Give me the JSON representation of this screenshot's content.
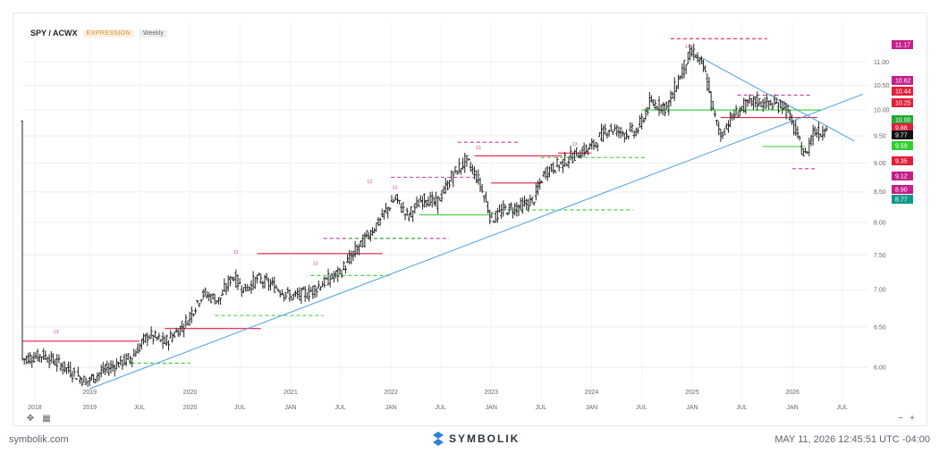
{
  "header": {
    "symbol": "SPY / ACWX",
    "expression_badge": "EXPRESSION",
    "frequency_badge": "Weekly"
  },
  "footer": {
    "site": "symbolik.com",
    "brand": "SYMBOLIK",
    "timestamp": "MAY 11, 2026 12:45:51 UTC -04:00"
  },
  "colors": {
    "up_signal": "#2fcf2f",
    "down_signal": "#e8204a",
    "trendline": "#4a9fe0",
    "bars": "#222222",
    "setup_count": "#c43aa0"
  },
  "chart_data": {
    "type": "ohlc",
    "scale": "log",
    "title": "SPY / ACWX",
    "frequency": "Weekly",
    "yticks": [
      6.0,
      6.5,
      7.0,
      7.5,
      8.0,
      8.5,
      9.0,
      9.5,
      10.0,
      10.5,
      11.0
    ],
    "ylim": [
      5.62,
      11.9
    ],
    "xlim": [
      "2018-05-01",
      "2026-10-01"
    ],
    "x_ticks": [
      {
        "label": "2018",
        "date": "2018-06-15",
        "year": true
      },
      {
        "label": "2019",
        "date": "2019-01-01",
        "year": true
      },
      {
        "label": "JUL",
        "date": "2019-07-01"
      },
      {
        "label": "2020",
        "date": "2020-01-01",
        "year": true
      },
      {
        "label": "JUL",
        "date": "2020-07-01"
      },
      {
        "label": "JAN",
        "date": "2021-01-01"
      },
      {
        "label": "JUL",
        "date": "2021-07-01"
      },
      {
        "label": "JAN",
        "date": "2022-01-01"
      },
      {
        "label": "JUL",
        "date": "2022-07-01"
      },
      {
        "label": "JAN",
        "date": "2023-01-01"
      },
      {
        "label": "JUL",
        "date": "2023-07-01"
      },
      {
        "label": "JAN",
        "date": "2024-01-01"
      },
      {
        "label": "JUL",
        "date": "2024-07-01"
      },
      {
        "label": "JAN",
        "date": "2025-01-01"
      },
      {
        "label": "JUL",
        "date": "2025-07-01"
      },
      {
        "label": "JAN",
        "date": "2026-01-01"
      },
      {
        "label": "JUL",
        "date": "2026-07-01"
      }
    ],
    "x_year_labels": [
      {
        "label": "2019",
        "date": "2019-01-01"
      },
      {
        "label": "2020",
        "date": "2020-01-01"
      },
      {
        "label": "2021",
        "date": "2021-01-01"
      },
      {
        "label": "2022",
        "date": "2022-01-01"
      },
      {
        "label": "2023",
        "date": "2023-01-01"
      },
      {
        "label": "2024",
        "date": "2024-01-01"
      },
      {
        "label": "2025",
        "date": "2025-01-01"
      },
      {
        "label": "2026",
        "date": "2026-01-01"
      }
    ],
    "price_path": [
      [
        "2018-05-01",
        6.1
      ],
      [
        "2018-07-15",
        6.15
      ],
      [
        "2018-10-01",
        6.0
      ],
      [
        "2018-12-20",
        5.83
      ],
      [
        "2019-03-01",
        5.98
      ],
      [
        "2019-06-01",
        6.12
      ],
      [
        "2019-08-01",
        6.4
      ],
      [
        "2019-10-01",
        6.3
      ],
      [
        "2019-12-15",
        6.55
      ],
      [
        "2020-02-15",
        6.95
      ],
      [
        "2020-04-15",
        6.85
      ],
      [
        "2020-06-01",
        7.2
      ],
      [
        "2020-07-15",
        7.0
      ],
      [
        "2020-09-01",
        7.15
      ],
      [
        "2020-11-01",
        7.05
      ],
      [
        "2021-01-01",
        6.9
      ],
      [
        "2021-03-01",
        6.95
      ],
      [
        "2021-05-01",
        7.1
      ],
      [
        "2021-07-01",
        7.25
      ],
      [
        "2021-09-01",
        7.6
      ],
      [
        "2021-11-15",
        8.0
      ],
      [
        "2022-01-15",
        8.4
      ],
      [
        "2022-03-01",
        8.1
      ],
      [
        "2022-05-01",
        8.4
      ],
      [
        "2022-06-15",
        8.3
      ],
      [
        "2022-08-15",
        8.8
      ],
      [
        "2022-10-01",
        9.05
      ],
      [
        "2022-11-15",
        8.7
      ],
      [
        "2023-01-01",
        8.05
      ],
      [
        "2023-02-15",
        8.2
      ],
      [
        "2023-04-15",
        8.25
      ],
      [
        "2023-06-01",
        8.35
      ],
      [
        "2023-07-15",
        8.85
      ],
      [
        "2023-09-15",
        9.0
      ],
      [
        "2023-11-01",
        9.15
      ],
      [
        "2024-01-01",
        9.3
      ],
      [
        "2024-03-01",
        9.65
      ],
      [
        "2024-05-01",
        9.55
      ],
      [
        "2024-06-15",
        9.6
      ],
      [
        "2024-08-01",
        10.15
      ],
      [
        "2024-10-01",
        10.05
      ],
      [
        "2024-12-01",
        10.9
      ],
      [
        "2025-01-01",
        11.25
      ],
      [
        "2025-02-15",
        10.8
      ],
      [
        "2025-03-15",
        10.0
      ],
      [
        "2025-04-15",
        9.5
      ],
      [
        "2025-05-15",
        9.8
      ],
      [
        "2025-07-01",
        10.05
      ],
      [
        "2025-08-15",
        10.18
      ],
      [
        "2025-10-01",
        10.12
      ],
      [
        "2025-12-01",
        10.1
      ],
      [
        "2026-01-01",
        9.7
      ],
      [
        "2026-02-15",
        9.1
      ],
      [
        "2026-03-15",
        9.6
      ],
      [
        "2026-04-15",
        9.55
      ],
      [
        "2026-05-08",
        9.77
      ]
    ],
    "trendlines": [
      {
        "from": [
          "2019-01-01",
          5.75
        ],
        "to": [
          "2026-09-15",
          10.32
        ],
        "color": "#4a9fe0"
      },
      {
        "from": [
          "2025-02-01",
          11.1
        ],
        "to": [
          "2026-08-15",
          9.4
        ],
        "color": "#4a9fe0"
      }
    ],
    "levels": [
      {
        "x1": "2018-05-01",
        "x2": "2019-07-01",
        "y": 6.32,
        "color": "#e8204a",
        "dashed": false
      },
      {
        "x1": "2019-10-01",
        "x2": "2020-09-15",
        "y": 6.48,
        "color": "#e8204a",
        "dashed": false
      },
      {
        "x1": "2019-06-01",
        "x2": "2020-01-01",
        "y": 6.05,
        "color": "#2fcf2f",
        "dashed": true
      },
      {
        "x1": "2020-04-01",
        "x2": "2021-05-01",
        "y": 6.65,
        "color": "#2fcf2f",
        "dashed": true
      },
      {
        "x1": "2020-09-01",
        "x2": "2021-12-01",
        "y": 7.52,
        "color": "#e8204a",
        "dashed": false
      },
      {
        "x1": "2021-05-01",
        "x2": "2022-08-01",
        "y": 7.75,
        "color": "#c43aa0",
        "dashed": true
      },
      {
        "x1": "2021-03-15",
        "x2": "2022-01-01",
        "y": 7.2,
        "color": "#2fcf2f",
        "dashed": true
      },
      {
        "x1": "2021-08-01",
        "x2": "2022-05-01",
        "y": 7.75,
        "color": "#2fcf2f",
        "dashed": true
      },
      {
        "x1": "2022-01-01",
        "x2": "2022-11-01",
        "y": 8.75,
        "color": "#c43aa0",
        "dashed": true
      },
      {
        "x1": "2022-04-15",
        "x2": "2023-01-01",
        "y": 8.12,
        "color": "#2fcf2f",
        "dashed": false
      },
      {
        "x1": "2022-11-01",
        "x2": "2023-09-15",
        "y": 9.13,
        "color": "#e8204a",
        "dashed": false
      },
      {
        "x1": "2022-09-01",
        "x2": "2023-04-15",
        "y": 9.38,
        "color": "#c43aa0",
        "dashed": true
      },
      {
        "x1": "2023-01-01",
        "x2": "2023-07-01",
        "y": 8.65,
        "color": "#e8204a",
        "dashed": false
      },
      {
        "x1": "2023-03-01",
        "x2": "2024-06-01",
        "y": 8.2,
        "color": "#2fcf2f",
        "dashed": true
      },
      {
        "x1": "2023-09-01",
        "x2": "2024-01-01",
        "y": 9.18,
        "color": "#e8204a",
        "dashed": false
      },
      {
        "x1": "2023-07-01",
        "x2": "2024-07-15",
        "y": 9.1,
        "color": "#2fcf2f",
        "dashed": true
      },
      {
        "x1": "2024-10-15",
        "x2": "2025-10-01",
        "y": 11.52,
        "color": "#e8204a",
        "dashed": true
      },
      {
        "x1": "2024-07-01",
        "x2": "2025-03-15",
        "y": 10.0,
        "color": "#2fcf2f",
        "dashed": false
      },
      {
        "x1": "2025-03-15",
        "x2": "2026-04-15",
        "y": 10.0,
        "color": "#2fcf2f",
        "dashed": false
      },
      {
        "x1": "2025-09-15",
        "x2": "2026-02-15",
        "y": 9.3,
        "color": "#2fcf2f",
        "dashed": false
      },
      {
        "x1": "2025-04-15",
        "x2": "2026-04-01",
        "y": 9.85,
        "color": "#e8204a",
        "dashed": false
      },
      {
        "x1": "2025-06-15",
        "x2": "2026-03-15",
        "y": 10.3,
        "color": "#c43aa0",
        "dashed": true
      },
      {
        "x1": "2026-01-01",
        "x2": "2026-04-01",
        "y": 8.9,
        "color": "#c43aa0",
        "dashed": true
      }
    ],
    "annotations": [
      {
        "text": "13",
        "date": "2018-09-01",
        "y": 6.42
      },
      {
        "text": "13",
        "date": "2020-06-15",
        "y": 7.52
      },
      {
        "text": "13",
        "date": "2021-04-01",
        "y": 7.35
      },
      {
        "text": "13",
        "date": "2021-10-15",
        "y": 8.65
      },
      {
        "text": "13",
        "date": "2022-01-15",
        "y": 8.55
      },
      {
        "text": "13",
        "date": "2022-11-15",
        "y": 9.25
      },
      {
        "text": "13",
        "date": "2023-11-01",
        "y": 9.32
      },
      {
        "text": "13",
        "date": "2024-12-15",
        "y": 11.3
      },
      {
        "text": "13",
        "date": "2025-08-01",
        "y": 10.12
      }
    ],
    "price_labels": [
      {
        "value": "11.17",
        "bg": "#c41f8c"
      },
      {
        "value": "11.00",
        "bg": null
      },
      {
        "value": "10.62",
        "bg": "#c41f8c"
      },
      {
        "value": "10.44",
        "bg": "#e21f3a"
      },
      {
        "value": "10.25",
        "bg": "#e21f3a"
      },
      {
        "value": "10.00",
        "bg": "#21a832"
      },
      {
        "value": "9.88",
        "bg": "#e21f3a"
      },
      {
        "value": "9.77",
        "bg": "#111111"
      },
      {
        "value": "9.59",
        "bg": "#2fcf2f"
      },
      {
        "value": "9.35",
        "bg": "#e21f3a"
      },
      {
        "value": "9.12",
        "bg": "#c41f8c"
      },
      {
        "value": "8.90",
        "bg": "#c41f8c"
      },
      {
        "value": "8.77",
        "bg": "#109a8a"
      }
    ]
  }
}
